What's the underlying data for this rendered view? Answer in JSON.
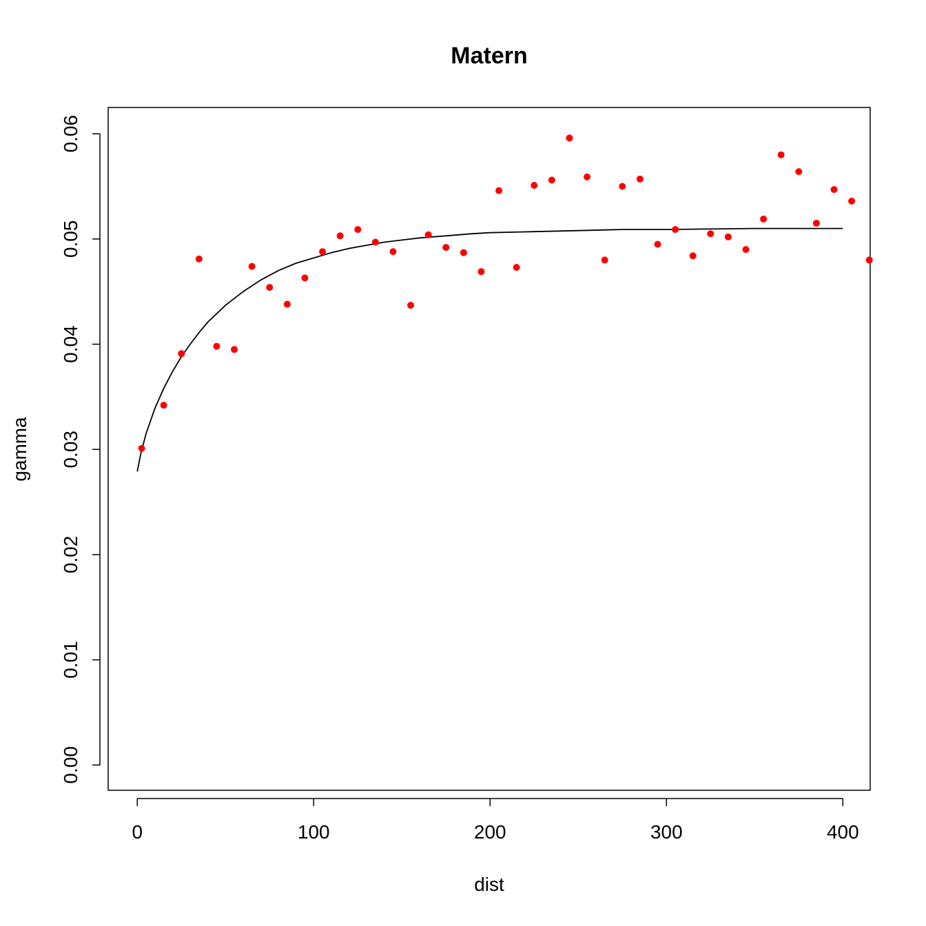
{
  "chart_data": {
    "type": "scatter",
    "title": "Matern",
    "xlabel": "dist",
    "ylabel": "gamma",
    "xlim": [
      -16.5,
      415.5
    ],
    "ylim": [
      -0.0024,
      0.0625
    ],
    "x_ticks": [
      0,
      100,
      200,
      300,
      400
    ],
    "x_tick_labels": [
      "0",
      "100",
      "200",
      "300",
      "400"
    ],
    "y_ticks": [
      0,
      0.01,
      0.02,
      0.03,
      0.04,
      0.05,
      0.06
    ],
    "y_tick_labels": [
      "0.00",
      "0.01",
      "0.02",
      "0.03",
      "0.04",
      "0.05",
      "0.06"
    ],
    "grid": false,
    "legend": "none",
    "points_color": "#ff0000",
    "line_color": "#000000",
    "series": [
      {
        "type": "scatter",
        "points": [
          [
            2.5,
            0.0301
          ],
          [
            15,
            0.0342
          ],
          [
            25,
            0.0391
          ],
          [
            35,
            0.0481
          ],
          [
            45,
            0.0398
          ],
          [
            55,
            0.0395
          ],
          [
            65,
            0.0474
          ],
          [
            75,
            0.0454
          ],
          [
            85,
            0.0438
          ],
          [
            95,
            0.0463
          ],
          [
            105,
            0.0488
          ],
          [
            115,
            0.0503
          ],
          [
            125,
            0.0509
          ],
          [
            135,
            0.0497
          ],
          [
            145,
            0.0488
          ],
          [
            155,
            0.0437
          ],
          [
            165,
            0.0504
          ],
          [
            175,
            0.0492
          ],
          [
            185,
            0.0487
          ],
          [
            195,
            0.0469
          ],
          [
            205,
            0.0546
          ],
          [
            215,
            0.0473
          ],
          [
            225,
            0.0551
          ],
          [
            235,
            0.0556
          ],
          [
            245,
            0.0596
          ],
          [
            255,
            0.0559
          ],
          [
            265,
            0.048
          ],
          [
            275,
            0.055
          ],
          [
            285,
            0.0557
          ],
          [
            295,
            0.0495
          ],
          [
            305,
            0.0509
          ],
          [
            315,
            0.0484
          ],
          [
            325,
            0.0505
          ],
          [
            335,
            0.0502
          ],
          [
            345,
            0.049
          ],
          [
            355,
            0.0519
          ],
          [
            365,
            0.058
          ],
          [
            375,
            0.0564
          ],
          [
            385,
            0.0515
          ],
          [
            395,
            0.0547
          ],
          [
            405,
            0.0536
          ],
          [
            415,
            0.048
          ]
        ]
      },
      {
        "type": "line",
        "points": [
          [
            0,
            0.0279
          ],
          [
            2,
            0.0296
          ],
          [
            5,
            0.0315
          ],
          [
            10,
            0.0339
          ],
          [
            15,
            0.0358
          ],
          [
            20,
            0.0374
          ],
          [
            25,
            0.0388
          ],
          [
            30,
            0.04
          ],
          [
            35,
            0.0411
          ],
          [
            40,
            0.0421
          ],
          [
            50,
            0.0437
          ],
          [
            60,
            0.045
          ],
          [
            70,
            0.0461
          ],
          [
            80,
            0.047
          ],
          [
            90,
            0.0477
          ],
          [
            100,
            0.0482
          ],
          [
            110,
            0.0487
          ],
          [
            120,
            0.0491
          ],
          [
            130,
            0.0494
          ],
          [
            140,
            0.0497
          ],
          [
            150,
            0.0499
          ],
          [
            160,
            0.0501
          ],
          [
            175,
            0.0503
          ],
          [
            190,
            0.0505
          ],
          [
            200,
            0.0506
          ],
          [
            225,
            0.0507
          ],
          [
            250,
            0.0508
          ],
          [
            275,
            0.0509
          ],
          [
            300,
            0.0509
          ],
          [
            350,
            0.051
          ],
          [
            400,
            0.051
          ]
        ]
      }
    ]
  }
}
